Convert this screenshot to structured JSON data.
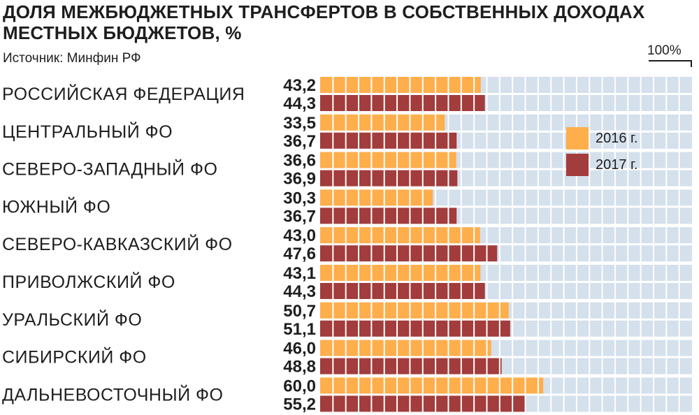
{
  "title": "ДОЛЯ МЕЖБЮДЖЕТНЫХ ТРАНСФЕРТОВ В СОБСТВЕННЫХ ДОХОДАХ МЕСТНЫХ БЮДЖЕТОВ, %",
  "source": "Источник: Минфин РФ",
  "max_label": "100%",
  "colors": {
    "series_2016": "#ffae4c",
    "series_2017": "#a33c3c",
    "track": "#d4e0ec",
    "text": "#1e1e1e"
  },
  "legend": {
    "placement": "top-right, inside plot"
  },
  "chart_data": {
    "type": "bar",
    "orientation": "horizontal",
    "title": "ДОЛЯ МЕЖБЮДЖЕТНЫХ ТРАНСФЕРТОВ В СОБСТВЕННЫХ ДОХОДАХ МЕСТНЫХ БЮДЖЕТОВ, %",
    "xlim": [
      0,
      100
    ],
    "grid": true,
    "categories": [
      "РОССИЙСКАЯ ФЕДЕРАЦИЯ",
      "ЦЕНТРАЛЬНЫЙ ФО",
      "СЕВЕРО-ЗАПАДНЫЙ ФО",
      "ЮЖНЫЙ ФО",
      "СЕВЕРО-КАВКАЗСКИЙ ФО",
      "ПРИВОЛЖСКИЙ ФО",
      "УРАЛЬСКИЙ ФО",
      "СИБИРСКИЙ ФО",
      "ДАЛЬНЕВОСТОЧНЫЙ ФО"
    ],
    "series": [
      {
        "name": "2016 г.",
        "values": [
          43.2,
          33.5,
          36.6,
          30.3,
          43.0,
          43.1,
          50.7,
          46.0,
          60.0
        ],
        "labels": [
          "43,2",
          "33,5",
          "36,6",
          "30,3",
          "43,0",
          "43,1",
          "50,7",
          "46,0",
          "60,0"
        ]
      },
      {
        "name": "2017 г.",
        "values": [
          44.3,
          36.7,
          36.9,
          36.7,
          47.6,
          44.3,
          51.1,
          48.8,
          55.2
        ],
        "labels": [
          "44,3",
          "36,7",
          "36,9",
          "36,7",
          "47,6",
          "44,3",
          "51,1",
          "48,8",
          "55,2"
        ]
      }
    ]
  }
}
